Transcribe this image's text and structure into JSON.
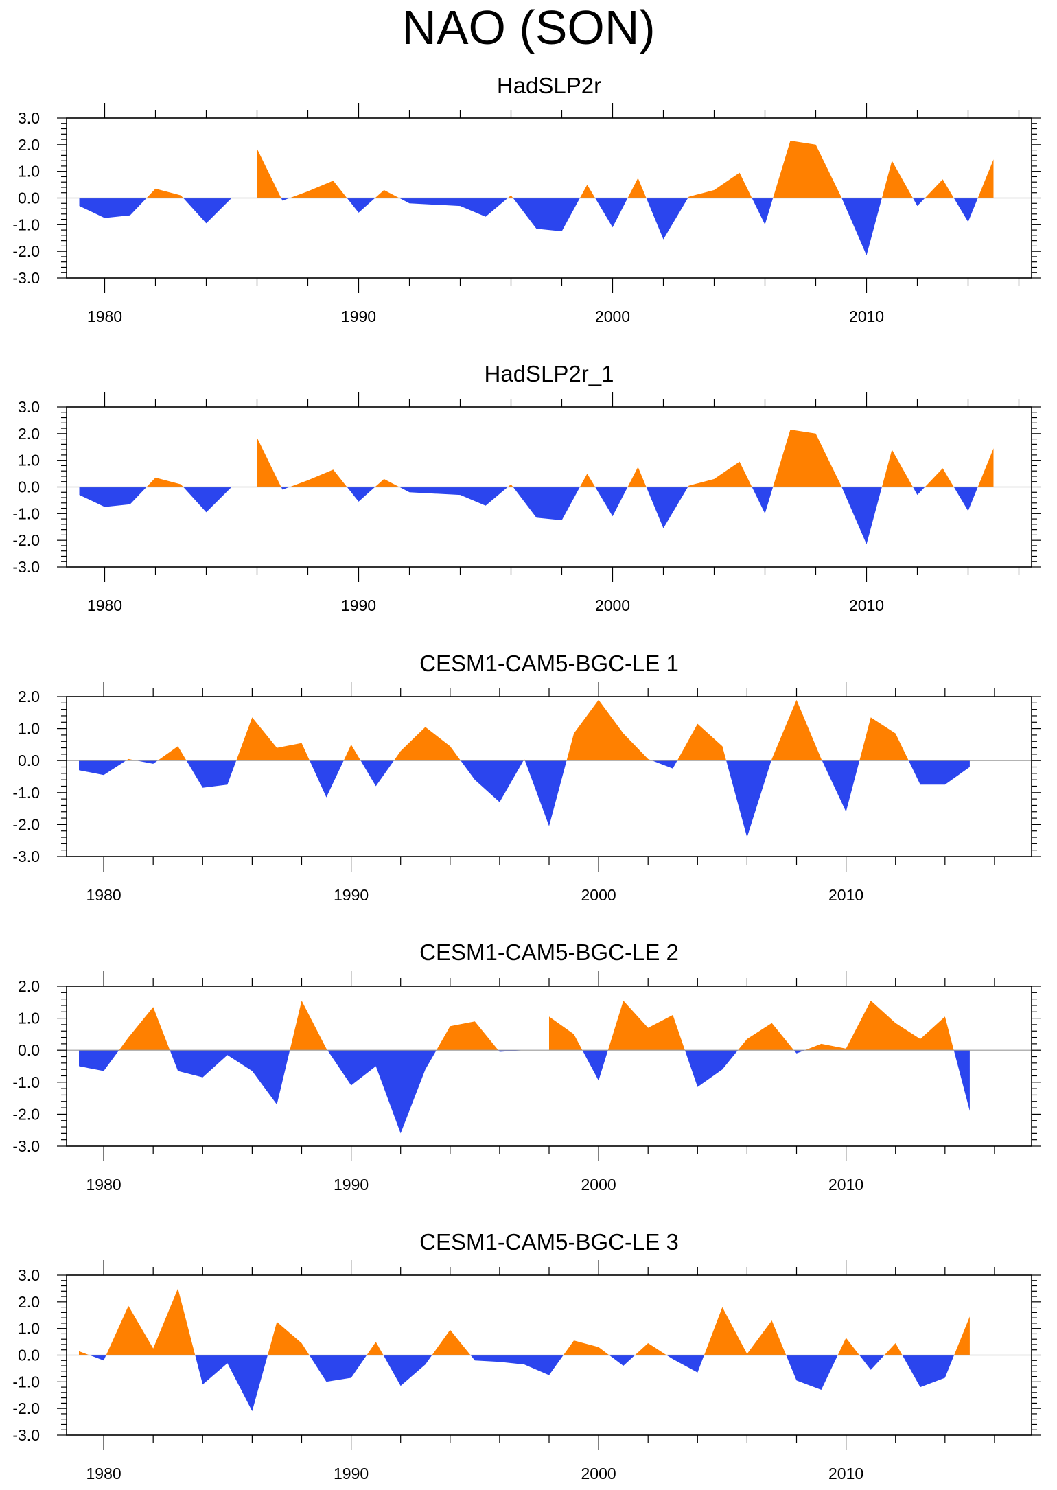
{
  "title": "NAO (SON)",
  "colors": {
    "positive": "#FF8000",
    "negative": "#2B45EE",
    "axis": "#000000",
    "zero_line": "#9a9a9a"
  },
  "chart_data": [
    {
      "type": "area",
      "title": "HadSLP2r",
      "xlabel": "",
      "ylabel": "",
      "x": [
        1979,
        1980,
        1981,
        1982,
        1983,
        1984,
        1985,
        1986,
        1987,
        1988,
        1989,
        1990,
        1991,
        1992,
        1993,
        1994,
        1995,
        1996,
        1997,
        1998,
        1999,
        2000,
        2001,
        2002,
        2003,
        2004,
        2005,
        2006,
        2007,
        2008,
        2009,
        2010,
        2011,
        2012,
        2013,
        2014,
        2015
      ],
      "values": [
        -0.3,
        -0.75,
        -0.65,
        0.35,
        0.1,
        -0.95,
        0.0,
        1.85,
        -0.1,
        0.25,
        0.65,
        -0.55,
        0.3,
        -0.2,
        -0.25,
        -0.3,
        -0.7,
        0.1,
        -1.15,
        -1.25,
        0.5,
        -1.1,
        0.75,
        -1.55,
        0.05,
        0.3,
        0.95,
        -1.0,
        2.15,
        2.0,
        0.05,
        -2.15,
        1.4,
        -0.3,
        0.7,
        -0.9,
        1.45
      ],
      "xlim": [
        1978.5,
        2016.5
      ],
      "ylim": [
        -3.0,
        3.0
      ],
      "xticks": [
        1980,
        1990,
        2000,
        2010
      ],
      "xtick_labels": [
        "1980",
        "1990",
        "2000",
        "2010"
      ],
      "yticks": [
        3.0,
        2.0,
        1.0,
        0.0,
        -1.0,
        -2.0,
        -3.0
      ],
      "ytick_labels": [
        "3.0",
        "2.0",
        "1.0",
        "0.0",
        "-1.0",
        "-2.0",
        "-3.0"
      ]
    },
    {
      "type": "area",
      "title": "HadSLP2r_1",
      "xlabel": "",
      "ylabel": "",
      "x": [
        1979,
        1980,
        1981,
        1982,
        1983,
        1984,
        1985,
        1986,
        1987,
        1988,
        1989,
        1990,
        1991,
        1992,
        1993,
        1994,
        1995,
        1996,
        1997,
        1998,
        1999,
        2000,
        2001,
        2002,
        2003,
        2004,
        2005,
        2006,
        2007,
        2008,
        2009,
        2010,
        2011,
        2012,
        2013,
        2014,
        2015
      ],
      "values": [
        -0.3,
        -0.75,
        -0.65,
        0.35,
        0.1,
        -0.95,
        0.0,
        1.85,
        -0.1,
        0.25,
        0.65,
        -0.55,
        0.3,
        -0.2,
        -0.25,
        -0.3,
        -0.7,
        0.1,
        -1.15,
        -1.25,
        0.5,
        -1.1,
        0.75,
        -1.55,
        0.05,
        0.3,
        0.95,
        -1.0,
        2.15,
        2.0,
        0.05,
        -2.15,
        1.4,
        -0.3,
        0.7,
        -0.9,
        1.45
      ],
      "xlim": [
        1978.5,
        2016.5
      ],
      "ylim": [
        -3.0,
        3.0
      ],
      "xticks": [
        1980,
        1990,
        2000,
        2010
      ],
      "xtick_labels": [
        "1980",
        "1990",
        "2000",
        "2010"
      ],
      "yticks": [
        3.0,
        2.0,
        1.0,
        0.0,
        -1.0,
        -2.0,
        -3.0
      ],
      "ytick_labels": [
        "3.0",
        "2.0",
        "1.0",
        "0.0",
        "-1.0",
        "-2.0",
        "-3.0"
      ]
    },
    {
      "type": "area",
      "title": "CESM1-CAM5-BGC-LE 1",
      "xlabel": "",
      "ylabel": "",
      "x": [
        1979,
        1980,
        1981,
        1982,
        1983,
        1984,
        1985,
        1986,
        1987,
        1988,
        1989,
        1990,
        1991,
        1992,
        1993,
        1994,
        1995,
        1996,
        1997,
        1998,
        1999,
        2000,
        2001,
        2002,
        2003,
        2004,
        2005,
        2006,
        2007,
        2008,
        2009,
        2010,
        2011,
        2012,
        2013,
        2014,
        2015
      ],
      "values": [
        -0.3,
        -0.45,
        0.05,
        -0.1,
        0.45,
        -0.85,
        -0.75,
        1.35,
        0.4,
        0.55,
        -1.15,
        0.5,
        -0.8,
        0.3,
        1.05,
        0.45,
        -0.6,
        -1.3,
        0.05,
        -2.05,
        0.85,
        1.9,
        0.85,
        0.05,
        -0.25,
        1.15,
        0.45,
        -2.4,
        0.05,
        1.9,
        0.05,
        -1.6,
        1.35,
        0.85,
        -0.75,
        -0.75,
        -0.2
      ],
      "xlim": [
        1978.5,
        2017.5
      ],
      "ylim": [
        -3.0,
        2.0
      ],
      "xticks": [
        1980,
        1990,
        2000,
        2010
      ],
      "xtick_labels": [
        "1980",
        "1990",
        "2000",
        "2010"
      ],
      "yticks": [
        2.0,
        1.0,
        0.0,
        -1.0,
        -2.0,
        -3.0
      ],
      "ytick_labels": [
        "2.0",
        "1.0",
        "0.0",
        "-1.0",
        "-2.0",
        "-3.0"
      ]
    },
    {
      "type": "area",
      "title": "CESM1-CAM5-BGC-LE 2",
      "xlabel": "",
      "ylabel": "",
      "x": [
        1979,
        1980,
        1981,
        1982,
        1983,
        1984,
        1985,
        1986,
        1987,
        1988,
        1989,
        1990,
        1991,
        1992,
        1993,
        1994,
        1995,
        1996,
        1997,
        1998,
        1999,
        2000,
        2001,
        2002,
        2003,
        2004,
        2005,
        2006,
        2007,
        2008,
        2009,
        2010,
        2011,
        2012,
        2013,
        2014,
        2015
      ],
      "values": [
        -0.5,
        -0.65,
        0.4,
        1.35,
        -0.65,
        -0.85,
        -0.15,
        -0.65,
        -1.7,
        1.55,
        0.05,
        -1.1,
        -0.5,
        -2.6,
        -0.6,
        0.75,
        0.9,
        -0.05,
        0.0,
        1.05,
        0.5,
        -0.95,
        1.55,
        0.7,
        1.1,
        -1.15,
        -0.6,
        0.35,
        0.85,
        -0.1,
        0.2,
        0.05,
        1.55,
        0.85,
        0.35,
        1.05,
        -1.9
      ],
      "xlim": [
        1978.5,
        2017.5
      ],
      "ylim": [
        -3.0,
        2.0
      ],
      "xticks": [
        1980,
        1990,
        2000,
        2010
      ],
      "xtick_labels": [
        "1980",
        "1990",
        "2000",
        "2010"
      ],
      "yticks": [
        2.0,
        1.0,
        0.0,
        -1.0,
        -2.0,
        -3.0
      ],
      "ytick_labels": [
        "2.0",
        "1.0",
        "0.0",
        "-1.0",
        "-2.0",
        "-3.0"
      ]
    },
    {
      "type": "area",
      "title": "CESM1-CAM5-BGC-LE 3",
      "xlabel": "",
      "ylabel": "",
      "x": [
        1979,
        1980,
        1981,
        1982,
        1983,
        1984,
        1985,
        1986,
        1987,
        1988,
        1989,
        1990,
        1991,
        1992,
        1993,
        1994,
        1995,
        1996,
        1997,
        1998,
        1999,
        2000,
        2001,
        2002,
        2003,
        2004,
        2005,
        2006,
        2007,
        2008,
        2009,
        2010,
        2011,
        2012,
        2013,
        2014,
        2015
      ],
      "values": [
        0.15,
        -0.2,
        1.85,
        0.25,
        2.5,
        -1.1,
        -0.3,
        -2.1,
        1.25,
        0.45,
        -1.0,
        -0.85,
        0.5,
        -1.15,
        -0.35,
        0.95,
        -0.2,
        -0.25,
        -0.35,
        -0.75,
        0.55,
        0.3,
        -0.4,
        0.45,
        -0.15,
        -0.65,
        1.8,
        0.05,
        1.3,
        -0.95,
        -1.3,
        0.65,
        -0.55,
        0.45,
        -1.2,
        -0.85,
        1.45
      ],
      "xlim": [
        1978.5,
        2017.5
      ],
      "ylim": [
        -3.0,
        3.0
      ],
      "xticks": [
        1980,
        1990,
        2000,
        2010
      ],
      "xtick_labels": [
        "1980",
        "1990",
        "2000",
        "2010"
      ],
      "yticks": [
        3.0,
        2.0,
        1.0,
        0.0,
        -1.0,
        -2.0,
        -3.0
      ],
      "ytick_labels": [
        "3.0",
        "2.0",
        "1.0",
        "0.0",
        "-1.0",
        "-2.0",
        "-3.0"
      ]
    }
  ]
}
